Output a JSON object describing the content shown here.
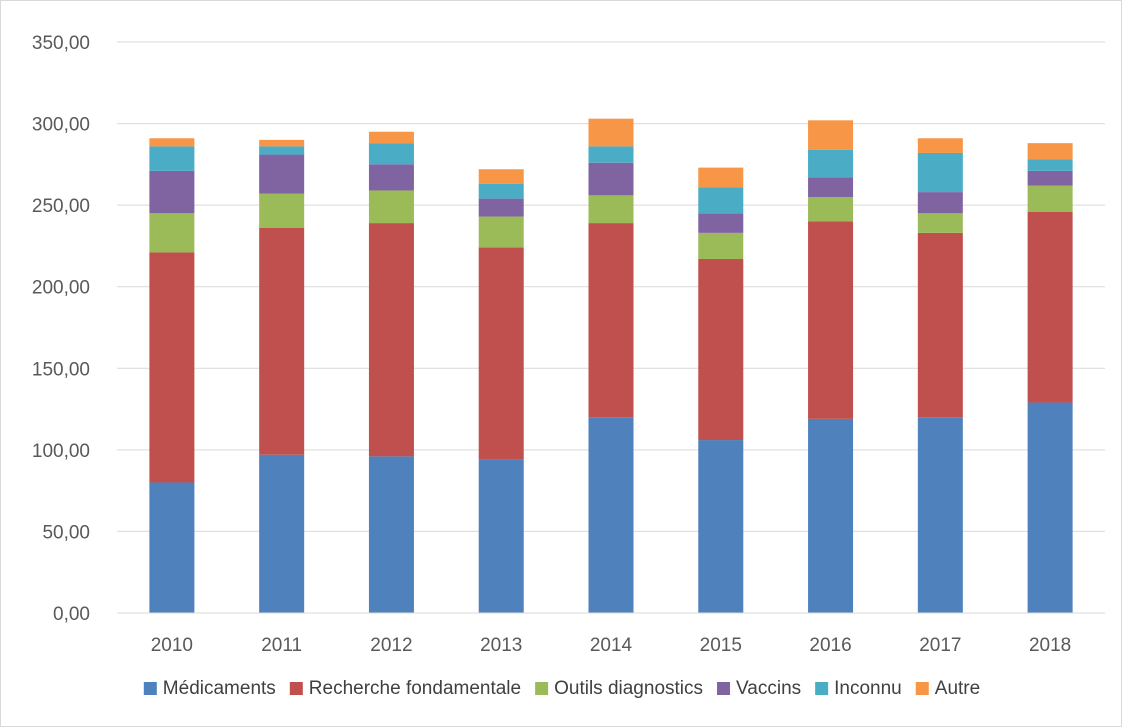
{
  "chart_data": {
    "type": "bar",
    "stacked": true,
    "title": "",
    "xlabel": "",
    "ylabel": "",
    "categories": [
      "2010",
      "2011",
      "2012",
      "2013",
      "2014",
      "2015",
      "2016",
      "2017",
      "2018"
    ],
    "ylim": [
      0,
      350
    ],
    "ytick_values": [
      0,
      50,
      100,
      150,
      200,
      250,
      300,
      350
    ],
    "ytick_labels": [
      "0,00",
      "50,00",
      "100,00",
      "150,00",
      "200,00",
      "250,00",
      "300,00",
      "350,00"
    ],
    "grid": true,
    "legend_position": "bottom",
    "series": [
      {
        "name": "Médicaments",
        "color": "#4f81bd",
        "values": [
          80,
          97,
          96,
          94,
          120,
          106,
          119,
          120,
          129
        ]
      },
      {
        "name": "Recherche fondamentale",
        "color": "#c0504d",
        "values": [
          141,
          139,
          143,
          130,
          119,
          111,
          121,
          113,
          117
        ]
      },
      {
        "name": "Outils diagnostics",
        "color": "#9bbb59",
        "values": [
          24,
          21,
          20,
          19,
          17,
          16,
          15,
          12,
          16
        ]
      },
      {
        "name": "Vaccins",
        "color": "#8064a2",
        "values": [
          26,
          24,
          16,
          11,
          20,
          12,
          12,
          13,
          9
        ]
      },
      {
        "name": "Inconnu",
        "color": "#4bacc6",
        "values": [
          15,
          5,
          13,
          9,
          10,
          16,
          17,
          24,
          7
        ]
      },
      {
        "name": "Autre",
        "color": "#f79646",
        "values": [
          5,
          4,
          7,
          9,
          17,
          12,
          18,
          9,
          10
        ]
      }
    ]
  }
}
